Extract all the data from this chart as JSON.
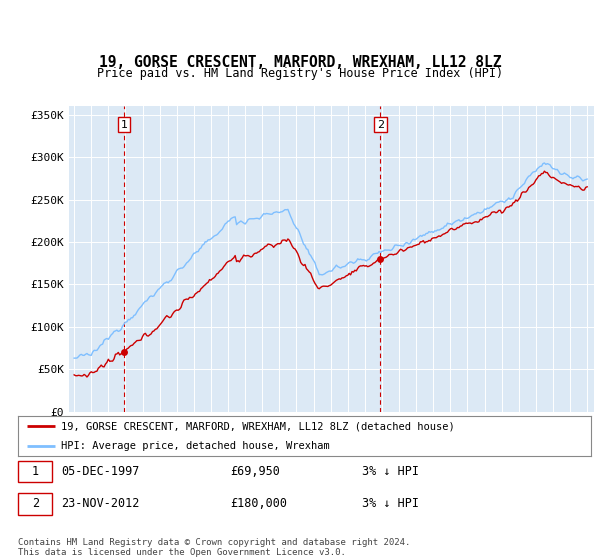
{
  "title": "19, GORSE CRESCENT, MARFORD, WREXHAM, LL12 8LZ",
  "subtitle": "Price paid vs. HM Land Registry's House Price Index (HPI)",
  "bg_color": "#dce9f5",
  "hpi_color": "#7fbfff",
  "price_color": "#cc0000",
  "ylim": [
    0,
    360000
  ],
  "yticks": [
    0,
    50000,
    100000,
    150000,
    200000,
    250000,
    300000,
    350000
  ],
  "ytick_labels": [
    "£0",
    "£50K",
    "£100K",
    "£150K",
    "£200K",
    "£250K",
    "£300K",
    "£350K"
  ],
  "legend_label_price": "19, GORSE CRESCENT, MARFORD, WREXHAM, LL12 8LZ (detached house)",
  "legend_label_hpi": "HPI: Average price, detached house, Wrexham",
  "sale1_date_num": 1997.92,
  "sale1_price": 69950,
  "sale2_date_num": 2012.9,
  "sale2_price": 180000,
  "footer": "Contains HM Land Registry data © Crown copyright and database right 2024.\nThis data is licensed under the Open Government Licence v3.0.",
  "annotation1_label": "1",
  "annotation1_date": "05-DEC-1997",
  "annotation1_price": "£69,950",
  "annotation1_hpi": "3% ↓ HPI",
  "annotation2_label": "2",
  "annotation2_date": "23-NOV-2012",
  "annotation2_price": "£180,000",
  "annotation2_hpi": "3% ↓ HPI",
  "xlim_left": 1994.7,
  "xlim_right": 2025.4
}
